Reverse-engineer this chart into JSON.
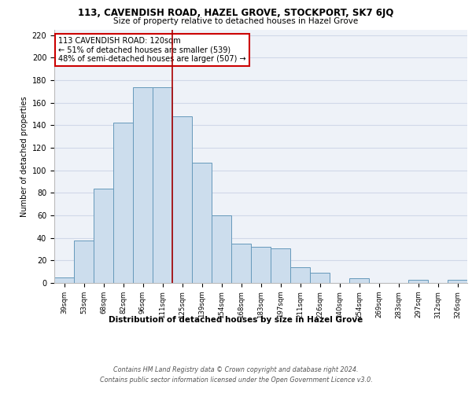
{
  "title": "113, CAVENDISH ROAD, HAZEL GROVE, STOCKPORT, SK7 6JQ",
  "subtitle": "Size of property relative to detached houses in Hazel Grove",
  "xlabel": "Distribution of detached houses by size in Hazel Grove",
  "ylabel": "Number of detached properties",
  "categories": [
    "39sqm",
    "53sqm",
    "68sqm",
    "82sqm",
    "96sqm",
    "111sqm",
    "125sqm",
    "139sqm",
    "154sqm",
    "168sqm",
    "183sqm",
    "197sqm",
    "211sqm",
    "226sqm",
    "240sqm",
    "254sqm",
    "269sqm",
    "283sqm",
    "297sqm",
    "312sqm",
    "326sqm"
  ],
  "values": [
    5,
    38,
    84,
    142,
    174,
    174,
    148,
    107,
    60,
    35,
    32,
    31,
    14,
    9,
    0,
    4,
    0,
    0,
    3,
    0,
    3
  ],
  "bar_color": "#ccdded",
  "bar_edge_color": "#6699bb",
  "highlight_line_color": "#aa0000",
  "annotation_box_text": "113 CAVENDISH ROAD: 120sqm\n← 51% of detached houses are smaller (539)\n48% of semi-detached houses are larger (507) →",
  "annotation_box_color": "#cc0000",
  "ylim": [
    0,
    225
  ],
  "yticks": [
    0,
    20,
    40,
    60,
    80,
    100,
    120,
    140,
    160,
    180,
    200,
    220
  ],
  "grid_color": "#d0d8e8",
  "background_color": "#eef2f8",
  "footer_line1": "Contains HM Land Registry data © Crown copyright and database right 2024.",
  "footer_line2": "Contains public sector information licensed under the Open Government Licence v3.0."
}
